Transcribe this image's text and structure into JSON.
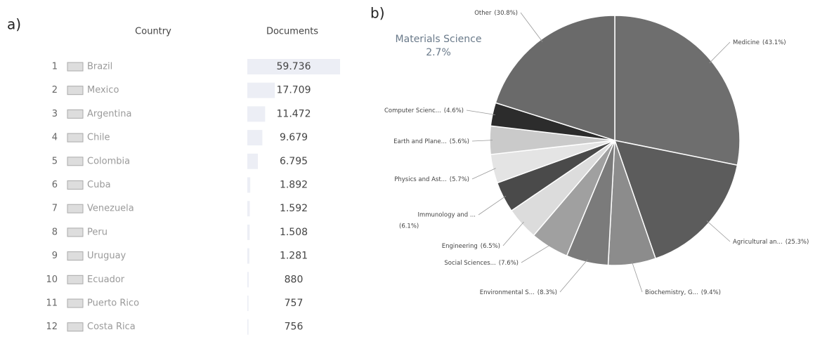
{
  "panel_a": {
    "label": "a)",
    "header": {
      "country": "Country",
      "documents": "Documents"
    },
    "rows": [
      {
        "rank": 1,
        "country": "Brazil",
        "documents": {
          "value": 59736,
          "label": "59.736"
        }
      },
      {
        "rank": 2,
        "country": "Mexico",
        "documents": {
          "value": 17709,
          "label": "17.709"
        }
      },
      {
        "rank": 3,
        "country": "Argentina",
        "documents": {
          "value": 11472,
          "label": "11.472"
        }
      },
      {
        "rank": 4,
        "country": "Chile",
        "documents": {
          "value": 9679,
          "label": "9.679"
        }
      },
      {
        "rank": 5,
        "country": "Colombia",
        "documents": {
          "value": 6795,
          "label": "6.795"
        }
      },
      {
        "rank": 6,
        "country": "Cuba",
        "documents": {
          "value": 1892,
          "label": "1.892"
        }
      },
      {
        "rank": 7,
        "country": "Venezuela",
        "documents": {
          "value": 1592,
          "label": "1.592"
        }
      },
      {
        "rank": 8,
        "country": "Peru",
        "documents": {
          "value": 1508,
          "label": "1.508"
        }
      },
      {
        "rank": 9,
        "country": "Uruguay",
        "documents": {
          "value": 1281,
          "label": "1.281"
        }
      },
      {
        "rank": 10,
        "country": "Ecuador",
        "documents": {
          "value": 880,
          "label": "880"
        }
      },
      {
        "rank": 11,
        "country": "Puerto Rico",
        "documents": {
          "value": 757,
          "label": "757"
        }
      },
      {
        "rank": 12,
        "country": "Costa Rica",
        "documents": {
          "value": 756,
          "label": "756"
        }
      }
    ]
  },
  "chart_data": {
    "type": "pie",
    "panel_label": "b)",
    "annotation": {
      "title": "Materials Science",
      "value": "2.7%"
    },
    "categories": [
      "Medicine",
      "Agricultural an...",
      "Biochemistry, G...",
      "Environmental S...",
      "Social Sciences...",
      "Engineering",
      "Immunology and ...",
      "Physics and Ast...",
      "Earth and Plane...",
      "Computer Scienc...",
      "Other"
    ],
    "values": [
      43.1,
      25.3,
      9.4,
      8.3,
      7.6,
      6.5,
      6.1,
      5.7,
      5.6,
      4.6,
      30.8
    ],
    "value_labels": [
      "(43.1%)",
      "(25.3%)",
      "(9.4%)",
      "(8.3%)",
      "(7.6%)",
      "(6.5%)",
      "(6.1%)",
      "(5.7%)",
      "(5.6%)",
      "(4.6%)",
      "(30.8%)"
    ],
    "colors": [
      "#6e6e6e",
      "#5c5c5c",
      "#8c8c8c",
      "#7b7b7b",
      "#a0a0a0",
      "#dcdcdc",
      "#4a4a4a",
      "#e4e4e4",
      "#cacaca",
      "#2c2c2c",
      "#6a6a6a"
    ]
  }
}
